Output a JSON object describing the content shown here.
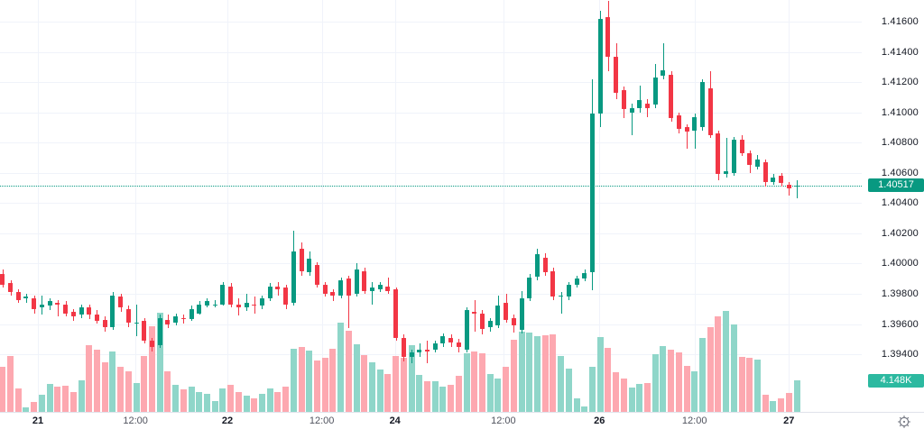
{
  "chart_data": {
    "type": "candlestick",
    "description": "Intraday (hourly) FX-style candlestick chart with volume histogram",
    "last_price": 1.40517,
    "last_price_label": "1.40517",
    "latest_volume_label": "4.148K",
    "volume_note": "volume values are relative heights read from the histogram; only the latest bar is labeled (4.148K)",
    "ylim": [
      1.393,
      1.418
    ],
    "grid": true,
    "price_axis_labels": [
      {
        "text": "1.41600",
        "value": 1.416
      },
      {
        "text": "1.41400",
        "value": 1.414
      },
      {
        "text": "1.41200",
        "value": 1.412
      },
      {
        "text": "1.41000",
        "value": 1.41
      },
      {
        "text": "1.40800",
        "value": 1.408
      },
      {
        "text": "1.40600",
        "value": 1.406
      },
      {
        "text": "1.40400",
        "value": 1.404
      },
      {
        "text": "1.40200",
        "value": 1.402
      },
      {
        "text": "1.40000",
        "value": 1.4
      },
      {
        "text": "1.39800",
        "value": 1.398
      },
      {
        "text": "1.39600",
        "value": 1.396
      },
      {
        "text": "1.39400",
        "value": 1.394
      }
    ],
    "time_ticks": [
      {
        "label": "21",
        "day": true,
        "ci": 4.5
      },
      {
        "label": "12:00",
        "day": false,
        "ci": 16.9
      },
      {
        "label": "22",
        "day": true,
        "ci": 28.6
      },
      {
        "label": "12:00",
        "day": false,
        "ci": 40.6
      },
      {
        "label": "24",
        "day": true,
        "ci": 49.9
      },
      {
        "label": "12:00",
        "day": false,
        "ci": 63.7
      },
      {
        "label": "26",
        "day": true,
        "ci": 75.9
      },
      {
        "label": "12:00",
        "day": false,
        "ci": 88.0
      },
      {
        "label": "27",
        "day": true,
        "ci": 100.0
      }
    ],
    "colors": {
      "up": "#089981",
      "down": "#f23645",
      "vol_up": "#8fd6c9",
      "vol_down": "#fda8b0",
      "last_tag_bg": "#089981",
      "vol_tag_bg": "#2cb9a0",
      "grid": "#f0f3fa",
      "axis_text": "#131722"
    },
    "candles_format": [
      "open",
      "high",
      "low",
      "close",
      "volume_rel"
    ],
    "candles": [
      [
        1.3993,
        1.3996,
        1.3984,
        1.3986,
        50
      ],
      [
        1.3987,
        1.3989,
        1.3979,
        1.3981,
        62
      ],
      [
        1.3981,
        1.3983,
        1.3974,
        1.3976,
        26
      ],
      [
        1.3977,
        1.398,
        1.3974,
        1.3978,
        5
      ],
      [
        1.3977,
        1.3979,
        1.3967,
        1.397,
        11
      ],
      [
        1.3971,
        1.3979,
        1.3966,
        1.3973,
        19
      ],
      [
        1.3972,
        1.3977,
        1.3969,
        1.3975,
        31
      ],
      [
        1.3974,
        1.3976,
        1.3965,
        1.3973,
        28
      ],
      [
        1.3973,
        1.3975,
        1.3965,
        1.3967,
        29
      ],
      [
        1.3968,
        1.397,
        1.3962,
        1.3965,
        22
      ],
      [
        1.3966,
        1.3973,
        1.3964,
        1.3971,
        35
      ],
      [
        1.3971,
        1.3973,
        1.3963,
        1.3966,
        74
      ],
      [
        1.3966,
        1.3969,
        1.396,
        1.3962,
        69
      ],
      [
        1.3963,
        1.3965,
        1.3955,
        1.3958,
        55
      ],
      [
        1.3958,
        1.3981,
        1.3956,
        1.3979,
        67
      ],
      [
        1.3978,
        1.398,
        1.3968,
        1.3971,
        50
      ],
      [
        1.397,
        1.3972,
        1.3958,
        1.3961,
        45
      ],
      [
        1.396,
        1.3973,
        1.3952,
        1.3961,
        32
      ],
      [
        1.3962,
        1.3964,
        1.3947,
        1.3949,
        62
      ],
      [
        1.3949,
        1.3951,
        1.3942,
        1.3945,
        95
      ],
      [
        1.3946,
        1.3966,
        1.3944,
        1.3964,
        110
      ],
      [
        1.3963,
        1.3966,
        1.3957,
        1.396,
        45
      ],
      [
        1.3961,
        1.3967,
        1.3959,
        1.3965,
        30
      ],
      [
        1.3964,
        1.3966,
        1.396,
        1.3963,
        25
      ],
      [
        1.3963,
        1.3972,
        1.3962,
        1.397,
        28
      ],
      [
        1.3967,
        1.3975,
        1.3966,
        1.3973,
        22
      ],
      [
        1.3972,
        1.3977,
        1.3971,
        1.3975,
        20
      ],
      [
        1.3973,
        1.3976,
        1.3971,
        1.3973,
        12
      ],
      [
        1.3973,
        1.3988,
        1.3972,
        1.3986,
        26
      ],
      [
        1.3985,
        1.3987,
        1.3971,
        1.3973,
        30
      ],
      [
        1.3973,
        1.3977,
        1.3966,
        1.3971,
        22
      ],
      [
        1.3971,
        1.398,
        1.3969,
        1.3974,
        18
      ],
      [
        1.3973,
        1.3978,
        1.3967,
        1.3972,
        15
      ],
      [
        1.3972,
        1.3979,
        1.397,
        1.3977,
        20
      ],
      [
        1.3977,
        1.3987,
        1.3975,
        1.3985,
        26
      ],
      [
        1.3985,
        1.3988,
        1.3979,
        1.3983,
        22
      ],
      [
        1.3984,
        1.3986,
        1.397,
        1.3973,
        28
      ],
      [
        1.3974,
        1.4022,
        1.3972,
        1.4008,
        70
      ],
      [
        1.401,
        1.4014,
        1.3992,
        1.3995,
        72
      ],
      [
        1.3994,
        1.4008,
        1.3992,
        1.4003,
        68
      ],
      [
        1.3999,
        1.4001,
        1.3984,
        1.3986,
        57
      ],
      [
        1.3986,
        1.3988,
        1.3978,
        1.398,
        60
      ],
      [
        1.3981,
        1.3983,
        1.3975,
        1.3979,
        70
      ],
      [
        1.3979,
        1.3991,
        1.3977,
        1.3989,
        99
      ],
      [
        1.399,
        1.3992,
        1.3957,
        1.3979,
        90
      ],
      [
        1.398,
        1.4,
        1.3978,
        1.3996,
        75
      ],
      [
        1.3995,
        1.3997,
        1.398,
        1.3982,
        63
      ],
      [
        1.3982,
        1.3988,
        1.3973,
        1.3984,
        55
      ],
      [
        1.3983,
        1.3988,
        1.3981,
        1.3986,
        47
      ],
      [
        1.3985,
        1.3991,
        1.398,
        1.3982,
        42
      ],
      [
        1.3983,
        1.3984,
        1.3949,
        1.3951,
        62
      ],
      [
        1.3951,
        1.3953,
        1.3935,
        1.3938,
        60
      ],
      [
        1.3938,
        1.3943,
        1.3934,
        1.3941,
        74
      ],
      [
        1.3941,
        1.3947,
        1.3938,
        1.3943,
        41
      ],
      [
        1.3943,
        1.3949,
        1.3934,
        1.3942,
        34
      ],
      [
        1.3943,
        1.3949,
        1.3941,
        1.3947,
        34
      ],
      [
        1.3947,
        1.3954,
        1.3945,
        1.3952,
        28
      ],
      [
        1.3951,
        1.3953,
        1.3945,
        1.3948,
        30
      ],
      [
        1.3948,
        1.395,
        1.3941,
        1.3945,
        40
      ],
      [
        1.3943,
        1.3971,
        1.3941,
        1.3969,
        65
      ],
      [
        1.3968,
        1.3976,
        1.3955,
        1.3967,
        67
      ],
      [
        1.3967,
        1.3969,
        1.3953,
        1.3957,
        65
      ],
      [
        1.3958,
        1.3964,
        1.3955,
        1.3962,
        42
      ],
      [
        1.3959,
        1.3979,
        1.3957,
        1.3972,
        37
      ],
      [
        1.3974,
        1.398,
        1.3961,
        1.3963,
        50
      ],
      [
        1.3964,
        1.3966,
        1.3954,
        1.3959,
        80
      ],
      [
        1.3956,
        1.3982,
        1.3954,
        1.3977,
        89
      ],
      [
        1.3977,
        1.3993,
        1.3975,
        1.3991,
        88
      ],
      [
        1.3991,
        1.401,
        1.3989,
        1.4006,
        84
      ],
      [
        1.4004,
        1.4007,
        1.3992,
        1.3994,
        85
      ],
      [
        1.3995,
        1.3997,
        1.3976,
        1.3978,
        86
      ],
      [
        1.3978,
        1.3981,
        1.3967,
        1.3979,
        62
      ],
      [
        1.3978,
        1.3988,
        1.3976,
        1.3986,
        48
      ],
      [
        1.3986,
        1.3992,
        1.3984,
        1.399,
        15
      ],
      [
        1.399,
        1.3996,
        1.3988,
        1.3994,
        6
      ],
      [
        1.3994,
        1.4122,
        1.3982,
        1.4099,
        50
      ],
      [
        1.4099,
        1.4167,
        1.409,
        1.4162,
        83
      ],
      [
        1.4163,
        1.4174,
        1.4127,
        1.4137,
        71
      ],
      [
        1.4137,
        1.4146,
        1.4109,
        1.4113,
        44
      ],
      [
        1.4115,
        1.4117,
        1.4096,
        1.4102,
        37
      ],
      [
        1.41,
        1.4106,
        1.4085,
        1.4103,
        27
      ],
      [
        1.4103,
        1.4118,
        1.41,
        1.4108,
        31
      ],
      [
        1.4106,
        1.4109,
        1.4097,
        1.4103,
        32
      ],
      [
        1.4105,
        1.4132,
        1.4103,
        1.4123,
        64
      ],
      [
        1.4124,
        1.4146,
        1.4122,
        1.4128,
        73
      ],
      [
        1.4125,
        1.4127,
        1.4094,
        1.4096,
        69
      ],
      [
        1.4098,
        1.41,
        1.4086,
        1.4089,
        66
      ],
      [
        1.409,
        1.4092,
        1.4076,
        1.4087,
        51
      ],
      [
        1.4088,
        1.4099,
        1.4076,
        1.4097,
        45
      ],
      [
        1.409,
        1.4122,
        1.4088,
        1.412,
        82
      ],
      [
        1.4116,
        1.4127,
        1.4083,
        1.4085,
        94
      ],
      [
        1.4086,
        1.4088,
        1.4055,
        1.4059,
        106
      ],
      [
        1.4059,
        1.4083,
        1.4057,
        1.4061,
        112
      ],
      [
        1.406,
        1.4084,
        1.4058,
        1.4082,
        97
      ],
      [
        1.4082,
        1.4085,
        1.4071,
        1.4073,
        61
      ],
      [
        1.4073,
        1.4075,
        1.406,
        1.4065,
        60
      ],
      [
        1.4064,
        1.4072,
        1.4062,
        1.4069,
        58
      ],
      [
        1.4067,
        1.4069,
        1.4051,
        1.4054,
        19
      ],
      [
        1.4054,
        1.4059,
        1.4052,
        1.4057,
        12
      ],
      [
        1.4058,
        1.406,
        1.4051,
        1.4053,
        15
      ],
      [
        1.4052,
        1.4054,
        1.4045,
        1.405,
        21
      ],
      [
        1.4051,
        1.4055,
        1.4043,
        1.40517,
        35
      ]
    ]
  }
}
